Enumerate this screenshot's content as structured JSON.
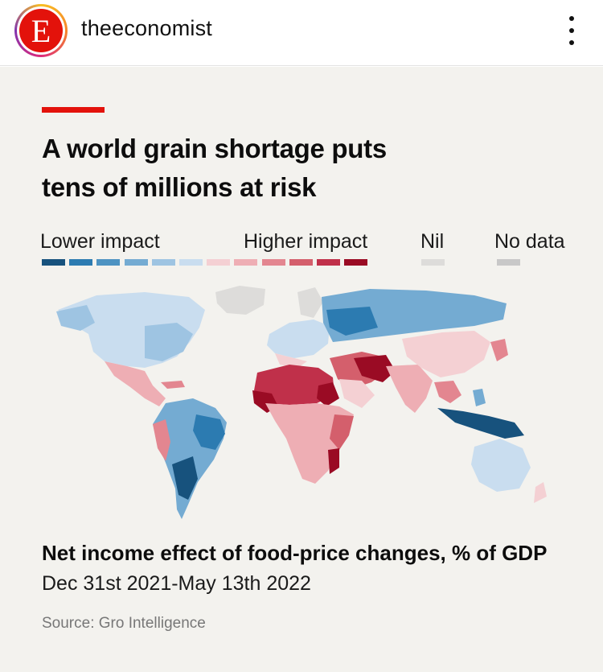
{
  "header": {
    "avatar_letter": "E",
    "username": "theeconomist",
    "more_icon": "vertical-ellipsis-icon"
  },
  "post": {
    "accent_color": "#e3120b",
    "title": "A world grain shortage puts\ntens of millions at risk",
    "legend": {
      "lower_label": "Lower impact",
      "higher_label": "Higher impact",
      "nil_label": "Nil",
      "nodata_label": "No data",
      "scale_colors": [
        "#17527d",
        "#2c7bb1",
        "#4d93c2",
        "#74abd2",
        "#9ec4e2",
        "#c9ddef",
        "#f4d0d3",
        "#eeaeb4",
        "#e38690",
        "#d45f6c",
        "#c0304a",
        "#9a0b24"
      ],
      "nil_color": "#dddcda",
      "nodata_color": "#c8c8c8"
    },
    "chart_data": {
      "type": "map",
      "title": "Net income effect of food-price changes, % of GDP",
      "subtitle": "Dec 31st 2021-May 13th 2022",
      "source": "Source: Gro Intelligence",
      "legend": [
        "Lower impact",
        "Higher impact",
        "Nil",
        "No data"
      ],
      "regions": [
        {
          "name": "North America",
          "impact": "lower"
        },
        {
          "name": "Central America",
          "impact": "higher"
        },
        {
          "name": "South America (Brazil, Argentina)",
          "impact": "lower"
        },
        {
          "name": "Andean South America",
          "impact": "higher"
        },
        {
          "name": "Europe",
          "impact": "mixed"
        },
        {
          "name": "Russia",
          "impact": "lower"
        },
        {
          "name": "North Africa",
          "impact": "higher"
        },
        {
          "name": "Sub-Saharan Africa",
          "impact": "higher"
        },
        {
          "name": "Middle East",
          "impact": "higher"
        },
        {
          "name": "South Asia",
          "impact": "higher"
        },
        {
          "name": "China",
          "impact": "higher"
        },
        {
          "name": "South-East Asia",
          "impact": "lower"
        },
        {
          "name": "Australia",
          "impact": "lower"
        }
      ]
    }
  }
}
